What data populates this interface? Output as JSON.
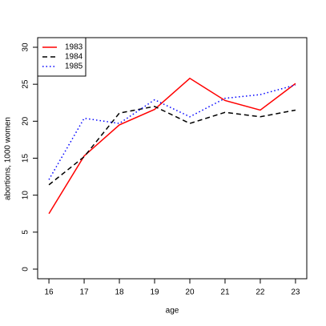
{
  "chart_data": {
    "type": "line",
    "x_label": "age",
    "y_label": "abortions, 1000 women",
    "x": [
      16,
      17,
      18,
      19,
      20,
      21,
      22,
      23
    ],
    "series": [
      {
        "name": "1983",
        "color": "#ff0000",
        "dash": "solid",
        "values": [
          7.5,
          15.3,
          19.5,
          21.6,
          25.8,
          22.8,
          21.5,
          25.1
        ]
      },
      {
        "name": "1984",
        "color": "#000000",
        "dash": "dashed",
        "values": [
          11.4,
          15.2,
          21.1,
          22.0,
          19.7,
          21.2,
          20.6,
          21.5
        ]
      },
      {
        "name": "1985",
        "color": "#0000ff",
        "dash": "dotted",
        "values": [
          12.1,
          20.4,
          19.7,
          22.9,
          20.6,
          23.1,
          23.6,
          24.9
        ]
      }
    ],
    "xlim": [
      15.68,
      23.32
    ],
    "xticks": [
      16,
      17,
      18,
      19,
      20,
      21,
      22,
      23
    ],
    "ylim": [
      -1.3,
      31.3
    ],
    "yticks": [
      0,
      5,
      10,
      15,
      20,
      25,
      30
    ],
    "legend": "topleft"
  }
}
